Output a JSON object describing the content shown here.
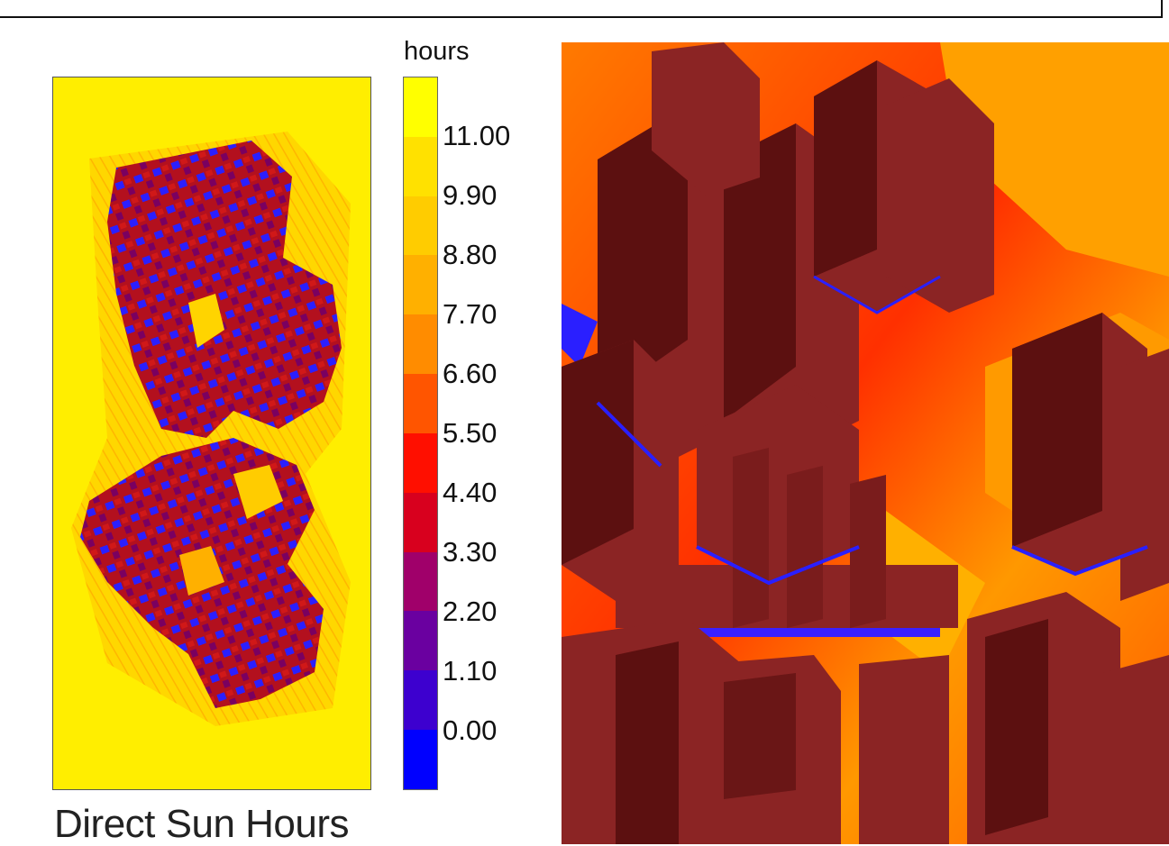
{
  "figure": {
    "caption": "Direct Sun Hours",
    "legend": {
      "unit": "hours",
      "tick_labels": [
        "11.00",
        "9.90",
        "8.80",
        "7.70",
        "6.60",
        "5.50",
        "4.40",
        "3.30",
        "2.20",
        "1.10",
        "0.00"
      ],
      "color_steps_top_to_bottom": [
        "#ffff00",
        "#ffe100",
        "#ffcc00",
        "#ffb000",
        "#ff8c00",
        "#ff5500",
        "#ff0f00",
        "#d8001e",
        "#a0006a",
        "#6a00a0",
        "#3d00cf",
        "#0000ff"
      ]
    },
    "panels": [
      {
        "name": "plan-view",
        "ground_color": "#ffee00",
        "building_color": "#b3101e",
        "shadow_color": "#1a1aff"
      },
      {
        "name": "perspective-view",
        "ground_color": "#ff8a00",
        "building_color": "#8b2424",
        "shadow_color": "#1a1aff"
      }
    ]
  }
}
